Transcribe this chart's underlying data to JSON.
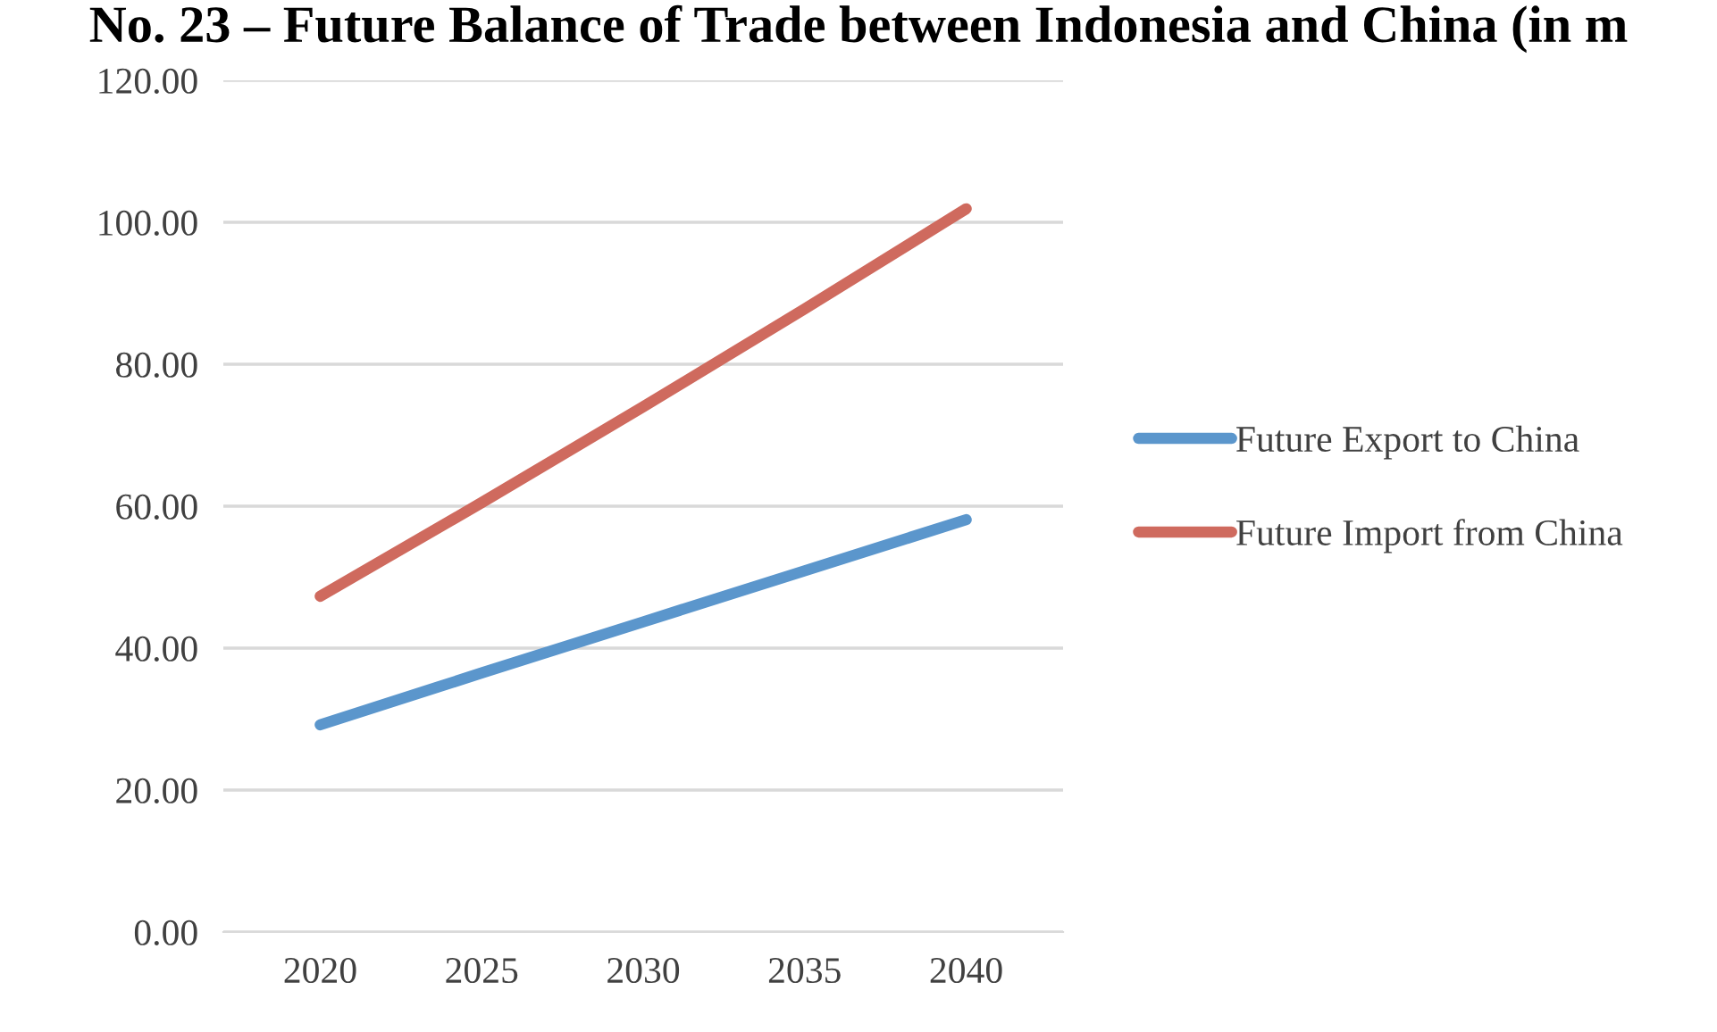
{
  "chart_data": {
    "type": "line",
    "title": "No. 23 – Future Balance of Trade between Indonesia and China (in m",
    "categories": [
      "2020",
      "2025",
      "2030",
      "2035",
      "2040"
    ],
    "series": [
      {
        "name": "Future Export to China",
        "color": "#5b96cc",
        "values": [
          29.2,
          36.5,
          43.7,
          50.9,
          58.1
        ]
      },
      {
        "name": "Future Import from China",
        "color": "#cf6a5e",
        "values": [
          47.3,
          60.5,
          74.0,
          87.8,
          101.9
        ]
      }
    ],
    "ylim": [
      0,
      120
    ],
    "yticks": [
      {
        "value": 0,
        "label": "0.00"
      },
      {
        "value": 20,
        "label": "20.00"
      },
      {
        "value": 40,
        "label": "40.00"
      },
      {
        "value": 60,
        "label": "60.00"
      },
      {
        "value": 80,
        "label": "80.00"
      },
      {
        "value": 100,
        "label": "100.00"
      },
      {
        "value": 120,
        "label": "120.00"
      }
    ],
    "grid": "y",
    "legend": "right",
    "marker": "none",
    "line_style": "solid"
  }
}
